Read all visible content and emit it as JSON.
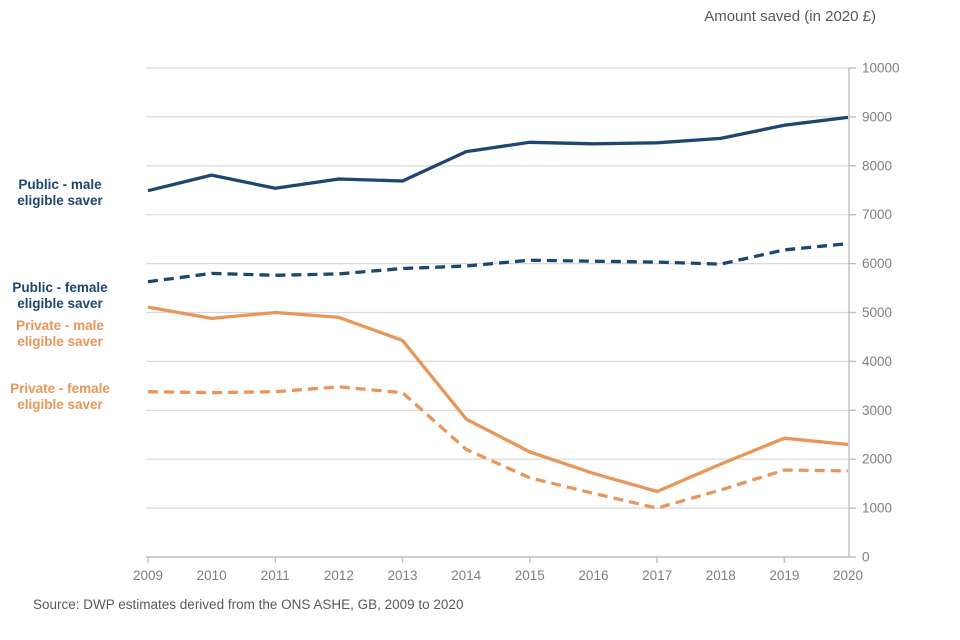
{
  "title": "Amount saved (in 2020 £)",
  "source_note": "Source: DWP estimates derived from the ONS ASHE, GB, 2009 to 2020",
  "chart_data": {
    "type": "line",
    "title": "Amount saved (in 2020 £)",
    "x": [
      2009,
      2010,
      2011,
      2012,
      2013,
      2014,
      2015,
      2016,
      2017,
      2018,
      2019,
      2020
    ],
    "xtick_marks": [
      2009,
      2011,
      2013,
      2015,
      2017,
      2019
    ],
    "ylim": [
      0,
      10000
    ],
    "ytick_step": 1000,
    "grid": true,
    "y_axis_side": "right",
    "legend_position": "left-margin",
    "grid_color": "#d9d9d9",
    "axis_color": "#bfbfbf",
    "tick_label_color": "#7f7f7f",
    "series": [
      {
        "name": "Public - male eligible saver",
        "label_lines": [
          "Public - male",
          "eligible saver"
        ],
        "color": "#1F466E",
        "style": "solid",
        "values": [
          7490,
          7810,
          7540,
          7730,
          7690,
          8290,
          8480,
          8450,
          8470,
          8560,
          8830,
          8990
        ]
      },
      {
        "name": "Public - female eligible saver",
        "label_lines": [
          "Public - female",
          "eligible saver"
        ],
        "color": "#1F466E",
        "style": "dashed",
        "values": [
          5630,
          5800,
          5760,
          5790,
          5900,
          5950,
          6070,
          6050,
          6030,
          5990,
          6280,
          6410
        ]
      },
      {
        "name": "Private - male eligible saver",
        "label_lines": [
          "Private - male",
          "eligible saver"
        ],
        "color": "#E8965A",
        "style": "solid",
        "values": [
          5110,
          4880,
          5000,
          4900,
          4430,
          2820,
          2150,
          1710,
          1340,
          1900,
          2430,
          2300
        ]
      },
      {
        "name": "Private - female eligible saver",
        "label_lines": [
          "Private - female",
          "eligible saver"
        ],
        "color": "#E8965A",
        "style": "dashed",
        "values": [
          3380,
          3360,
          3380,
          3480,
          3360,
          2200,
          1620,
          1300,
          1000,
          1370,
          1780,
          1760
        ]
      }
    ]
  }
}
